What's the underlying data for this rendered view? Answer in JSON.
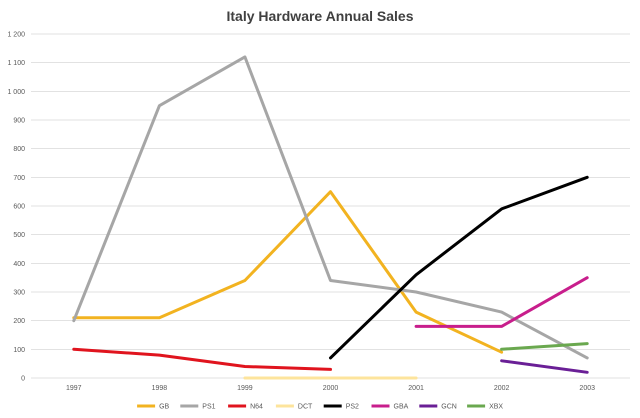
{
  "chart_data": {
    "type": "line",
    "title": "Italy Hardware Annual Sales",
    "xlabel": "",
    "ylabel": "",
    "categories": [
      "1997",
      "1998",
      "1999",
      "2000",
      "2001",
      "2002",
      "2003"
    ],
    "y_ticks": [
      "0",
      "100",
      "200",
      "300",
      "400",
      "500",
      "600",
      "700",
      "800",
      "900",
      "1 000",
      "1 100",
      "1 200"
    ],
    "ylim": [
      0,
      1200
    ],
    "grid": true,
    "legend_position": "bottom",
    "series": [
      {
        "name": "GB",
        "color": "#f2b320",
        "values": [
          210,
          210,
          340,
          650,
          230,
          90,
          null
        ]
      },
      {
        "name": "PS1",
        "color": "#a6a6a6",
        "values": [
          200,
          950,
          1120,
          340,
          300,
          230,
          70
        ]
      },
      {
        "name": "N64",
        "color": "#e0141e",
        "values": [
          100,
          80,
          40,
          30,
          null,
          null,
          null
        ]
      },
      {
        "name": "DCT",
        "color": "#fde49c",
        "values": [
          null,
          null,
          0,
          0,
          0,
          null,
          null
        ]
      },
      {
        "name": "PS2",
        "color": "#000000",
        "values": [
          null,
          null,
          null,
          70,
          360,
          590,
          700
        ]
      },
      {
        "name": "GBA",
        "color": "#c81e8c",
        "values": [
          null,
          null,
          null,
          null,
          180,
          180,
          350
        ]
      },
      {
        "name": "GCN",
        "color": "#6a1f96",
        "values": [
          null,
          null,
          null,
          null,
          null,
          60,
          20
        ]
      },
      {
        "name": "XBX",
        "color": "#6aa84f",
        "values": [
          null,
          null,
          null,
          null,
          null,
          100,
          120
        ]
      }
    ]
  }
}
